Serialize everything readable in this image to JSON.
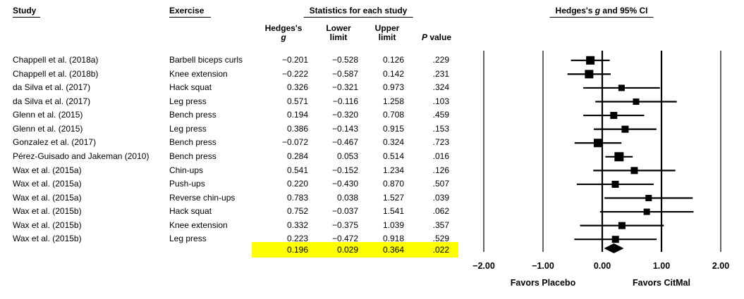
{
  "table": {
    "col_study": "Study",
    "col_exercise": "Exercise",
    "stats_group_header": "Statistics for each study",
    "subheaders": {
      "hedges_line1": "Hedges's",
      "hedges_line2": "g",
      "lower_line1": "Lower",
      "lower_line2": "limit",
      "upper_line1": "Upper",
      "upper_line2": "limit",
      "p_italic": "P",
      "p_rest": " value"
    }
  },
  "plot": {
    "header_pre": "Hedges's ",
    "header_italic": "g",
    "header_post": " and 95% CI",
    "favors_left": "Favors Placebo",
    "favors_right": "Favors CitMal",
    "highlight_color": "#ffff00",
    "ink_color": "#000000"
  },
  "chart_data": {
    "type": "scatter",
    "subtype": "forest-plot-meta-analysis",
    "title": "Hedges's g and 95% CI",
    "columns": [
      "Study",
      "Exercise",
      "Hedges's g",
      "Lower limit",
      "Upper limit",
      "P value"
    ],
    "x_axis": {
      "xlim": [
        -2.4,
        2.4
      ],
      "ticks": [
        -2.0,
        -1.0,
        0.0,
        1.0,
        2.0
      ],
      "tick_labels": [
        "−2.00",
        "−1.00",
        "0.00",
        "1.00",
        "2.00"
      ],
      "label_left": "Favors Placebo",
      "label_right": "Favors CitMal",
      "grid": "vertical-reference-lines"
    },
    "legend": "none",
    "studies": [
      {
        "study": "Chappell et al. (2018a)",
        "exercise": "Barbell biceps curls",
        "g": -0.201,
        "lower": -0.528,
        "upper": 0.126,
        "p": 0.229,
        "marker_size": 12
      },
      {
        "study": "Chappell et al. (2018b)",
        "exercise": "Knee extension",
        "g": -0.222,
        "lower": -0.587,
        "upper": 0.142,
        "p": 0.231,
        "marker_size": 12
      },
      {
        "study": "da Silva et al. (2017)",
        "exercise": "Hack squat",
        "g": 0.326,
        "lower": -0.321,
        "upper": 0.973,
        "p": 0.324,
        "marker_size": 9
      },
      {
        "study": "da Silva et al. (2017)",
        "exercise": "Leg press",
        "g": 0.571,
        "lower": -0.116,
        "upper": 1.258,
        "p": 0.103,
        "marker_size": 9
      },
      {
        "study": "Glenn et al. (2015)",
        "exercise": "Bench press",
        "g": 0.194,
        "lower": -0.32,
        "upper": 0.708,
        "p": 0.459,
        "marker_size": 10
      },
      {
        "study": "Glenn et al. (2015)",
        "exercise": "Leg press",
        "g": 0.386,
        "lower": -0.143,
        "upper": 0.915,
        "p": 0.153,
        "marker_size": 10
      },
      {
        "study": "Gonzalez et al. (2017)",
        "exercise": "Bench press",
        "g": -0.072,
        "lower": -0.467,
        "upper": 0.324,
        "p": 0.723,
        "marker_size": 12
      },
      {
        "study": "Pérez-Guisado and Jakeman (2010)",
        "exercise": "Bench press",
        "g": 0.284,
        "lower": 0.053,
        "upper": 0.514,
        "p": 0.016,
        "marker_size": 13
      },
      {
        "study": "Wax et al. (2015a)",
        "exercise": "Chin-ups",
        "g": 0.541,
        "lower": -0.152,
        "upper": 1.234,
        "p": 0.126,
        "marker_size": 10
      },
      {
        "study": "Wax et al. (2015a)",
        "exercise": "Push-ups",
        "g": 0.22,
        "lower": -0.43,
        "upper": 0.87,
        "p": 0.507,
        "marker_size": 10
      },
      {
        "study": "Wax et al. (2015a)",
        "exercise": "Reverse chin-ups",
        "g": 0.783,
        "lower": 0.038,
        "upper": 1.527,
        "p": 0.039,
        "marker_size": 9
      },
      {
        "study": "Wax et al. (2015b)",
        "exercise": "Hack squat",
        "g": 0.752,
        "lower": -0.037,
        "upper": 1.541,
        "p": 0.062,
        "marker_size": 9
      },
      {
        "study": "Wax et al. (2015b)",
        "exercise": "Knee extension",
        "g": 0.332,
        "lower": -0.375,
        "upper": 1.039,
        "p": 0.357,
        "marker_size": 10
      },
      {
        "study": "Wax et al. (2015b)",
        "exercise": "Leg press",
        "g": 0.223,
        "lower": -0.472,
        "upper": 0.918,
        "p": 0.529,
        "marker_size": 10
      }
    ],
    "summary": {
      "g": 0.196,
      "lower": 0.029,
      "upper": 0.364,
      "p": 0.022,
      "highlighted": true
    }
  }
}
